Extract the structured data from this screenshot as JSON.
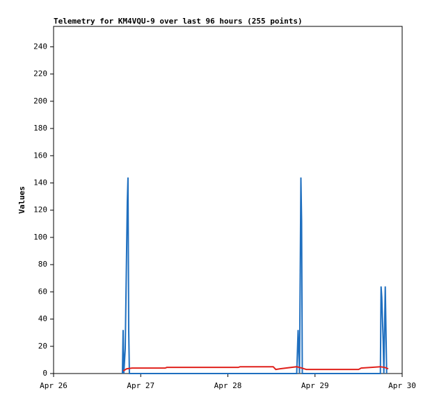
{
  "chart_data": {
    "type": "line",
    "title": "Telemetry for KM4VQU-9 over last 96 hours (255 points)",
    "ylabel": "Values",
    "xlim": [
      0,
      4
    ],
    "xticks": [
      {
        "value": 0,
        "label": "Apr 26"
      },
      {
        "value": 1,
        "label": "Apr 27"
      },
      {
        "value": 2,
        "label": "Apr 28"
      },
      {
        "value": 3,
        "label": "Apr 29"
      },
      {
        "value": 4,
        "label": "Apr 30"
      }
    ],
    "ylim": [
      0,
      255
    ],
    "yticks": [
      0,
      20,
      40,
      60,
      80,
      100,
      120,
      140,
      160,
      180,
      200,
      220,
      240
    ],
    "grid": false,
    "series": [
      {
        "color": "#1f6fbf",
        "x": [
          0.79,
          0.798,
          0.806,
          0.822,
          0.83,
          0.838,
          0.846,
          0.854,
          0.862,
          0.87,
          2.79,
          2.798,
          2.806,
          2.822,
          2.83,
          2.838,
          2.846,
          2.854,
          3.75,
          3.758,
          3.766,
          3.774,
          3.782,
          3.79,
          3.806,
          3.814,
          3.822
        ],
        "values": [
          0,
          32,
          0,
          18,
          54,
          90,
          126,
          144,
          32,
          0,
          0,
          16,
          32,
          0,
          72,
          144,
          112,
          0,
          0,
          64,
          56,
          40,
          24,
          0,
          64,
          32,
          0
        ]
      },
      {
        "color": "#e0201b",
        "x": [
          0.8,
          0.84,
          0.9,
          1.28,
          1.3,
          2.12,
          2.14,
          2.52,
          2.55,
          2.6,
          2.79,
          2.85,
          2.9,
          3.5,
          3.53,
          3.75,
          3.8,
          3.84
        ],
        "values": [
          2,
          3.5,
          4,
          4,
          4.5,
          4.5,
          5,
          5,
          3,
          3.5,
          5,
          4,
          3,
          3,
          4,
          5,
          4.5,
          3.5
        ]
      }
    ]
  }
}
